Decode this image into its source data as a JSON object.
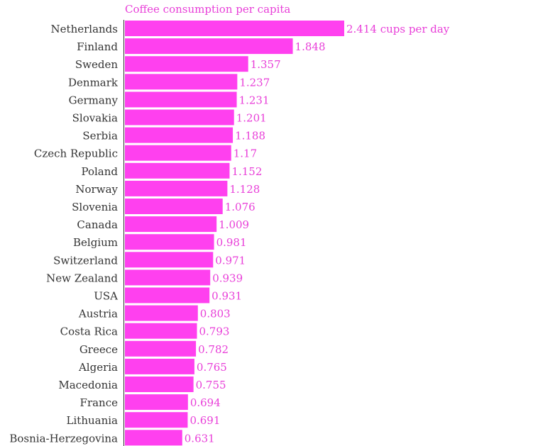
{
  "chart_data": {
    "type": "bar",
    "orientation": "horizontal",
    "title": "Coffee consumption per capita",
    "bar_color": "#ff40ef",
    "label_color": "#e83ed8",
    "value_suffix_first": " cups per day",
    "categories": [
      "Netherlands",
      "Finland",
      "Sweden",
      "Denmark",
      "Germany",
      "Slovakia",
      "Serbia",
      "Czech Republic",
      "Poland",
      "Norway",
      "Slovenia",
      "Canada",
      "Belgium",
      "Switzerland",
      "New Zealand",
      "USA",
      "Austria",
      "Costa Rica",
      "Greece",
      "Algeria",
      "Macedonia",
      "France",
      "Lithuania",
      "Bosnia-Herzegovina"
    ],
    "values": [
      2.414,
      1.848,
      1.357,
      1.237,
      1.231,
      1.201,
      1.188,
      1.17,
      1.152,
      1.128,
      1.076,
      1.009,
      0.981,
      0.971,
      0.939,
      0.931,
      0.803,
      0.793,
      0.782,
      0.765,
      0.755,
      0.694,
      0.691,
      0.631
    ],
    "value_labels": [
      "2.414",
      "1.848",
      "1.357",
      "1.237",
      "1.231",
      "1.201",
      "1.188",
      "1.17",
      "1.152",
      "1.128",
      "1.076",
      "1.009",
      "0.981",
      "0.971",
      "0.939",
      "0.931",
      "0.803",
      "0.793",
      "0.782",
      "0.765",
      "0.755",
      "0.694",
      "0.691",
      "0.631"
    ],
    "xlim": [
      0,
      2.414
    ],
    "grid": false
  }
}
